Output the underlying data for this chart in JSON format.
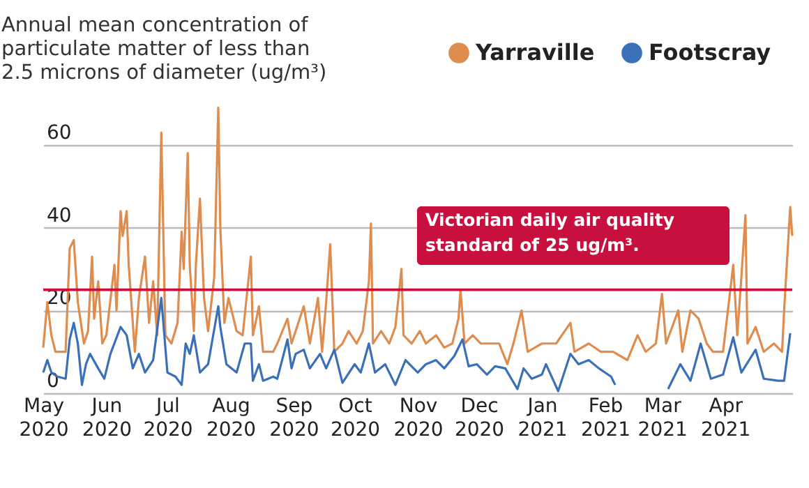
{
  "chart_data": {
    "type": "line",
    "title": "Annual mean concentration of particulate matter of less than 2.5 microns of diameter (ug/m³)",
    "legend": "top right",
    "grid": "y",
    "xlim": [
      "2020-05-01",
      "2021-05-04"
    ],
    "xticks": [
      {
        "value": "2020-05-01",
        "label": "May 2020"
      },
      {
        "value": "2020-06-01",
        "label": "Jun 2020"
      },
      {
        "value": "2020-07-01",
        "label": "Jul 2020"
      },
      {
        "value": "2020-08-01",
        "label": "Aug 2020"
      },
      {
        "value": "2020-09-01",
        "label": "Sep 2020"
      },
      {
        "value": "2020-10-01",
        "label": "Oct 2020"
      },
      {
        "value": "2020-11-01",
        "label": "Nov 2020"
      },
      {
        "value": "2020-12-01",
        "label": "Dec 2020"
      },
      {
        "value": "2021-01-01",
        "label": "Jan 2021"
      },
      {
        "value": "2021-02-01",
        "label": "Feb 2021"
      },
      {
        "value": "2021-03-01",
        "label": "Mar 2021"
      },
      {
        "value": "2021-04-01",
        "label": "Apr 2021"
      }
    ],
    "ylim": [
      0,
      95
    ],
    "yticks": [
      0,
      20,
      40,
      60
    ],
    "ref_lines": [
      {
        "axis": "y",
        "value": 25,
        "label": "Victorian daily air quality standard of 25 ug/m³.",
        "color": "#c8103e"
      }
    ],
    "series": [
      {
        "name": "Yarraville",
        "color": "#df8c4f",
        "x": [
          "2020-05-01",
          "2020-05-03",
          "2020-05-05",
          "2020-05-07",
          "2020-05-12",
          "2020-05-14",
          "2020-05-16",
          "2020-05-18",
          "2020-05-21",
          "2020-05-23",
          "2020-05-25",
          "2020-05-26",
          "2020-05-28",
          "2020-05-30",
          "2020-06-01",
          "2020-06-05",
          "2020-06-06",
          "2020-06-08",
          "2020-06-09",
          "2020-06-11",
          "2020-06-12",
          "2020-06-15",
          "2020-06-17",
          "2020-06-20",
          "2020-06-22",
          "2020-06-24",
          "2020-06-26",
          "2020-06-28",
          "2020-06-30",
          "2020-07-03",
          "2020-07-06",
          "2020-07-08",
          "2020-07-09",
          "2020-07-11",
          "2020-07-12",
          "2020-07-14",
          "2020-07-15",
          "2020-07-17",
          "2020-07-19",
          "2020-07-21",
          "2020-07-24",
          "2020-07-26",
          "2020-07-27",
          "2020-07-29",
          "2020-07-31",
          "2020-08-04",
          "2020-08-07",
          "2020-08-11",
          "2020-08-12",
          "2020-08-15",
          "2020-08-17",
          "2020-08-22",
          "2020-08-24",
          "2020-08-29",
          "2020-08-31",
          "2020-09-06",
          "2020-09-09",
          "2020-09-13",
          "2020-09-15",
          "2020-09-17",
          "2020-09-19",
          "2020-09-21",
          "2020-09-25",
          "2020-09-28",
          "2020-10-02",
          "2020-10-05",
          "2020-10-08",
          "2020-10-09",
          "2020-10-10",
          "2020-10-14",
          "2020-10-18",
          "2020-10-21",
          "2020-10-24",
          "2020-10-25",
          "2020-10-29",
          "2020-11-02",
          "2020-11-05",
          "2020-11-10",
          "2020-11-14",
          "2020-11-18",
          "2020-11-21",
          "2020-11-22",
          "2020-11-24",
          "2020-11-28",
          "2020-12-02",
          "2020-12-07",
          "2020-12-11",
          "2020-12-15",
          "2020-12-18",
          "2020-12-22",
          "2020-12-25",
          "2021-01-01",
          "2021-01-08",
          "2021-01-15",
          "2021-01-17",
          "2021-01-24",
          "2021-01-30",
          "2021-02-05",
          "2021-02-12",
          "2021-02-17",
          "2021-02-21",
          "2021-02-26",
          "2021-03-01",
          "2021-03-03",
          "2021-03-09",
          "2021-03-11",
          "2021-03-15",
          "2021-03-19",
          "2021-03-23",
          "2021-03-26",
          "2021-03-31",
          "2021-04-05",
          "2021-04-07",
          "2021-04-09",
          "2021-04-11",
          "2021-04-12",
          "2021-04-16",
          "2021-04-20",
          "2021-04-25",
          "2021-04-29",
          "2021-04-30",
          "2021-05-03",
          "2021-05-04"
        ],
        "values": [
          11,
          22,
          14,
          10,
          10,
          35,
          37,
          22,
          12,
          15,
          33,
          18,
          27,
          12,
          14,
          31,
          20,
          44,
          38,
          44,
          31,
          10,
          23,
          33,
          17,
          27,
          14,
          63,
          14,
          12,
          17,
          39,
          30,
          58,
          31,
          15,
          31,
          47,
          23,
          15,
          28,
          69,
          40,
          17,
          23,
          15,
          14,
          33,
          14,
          21,
          10,
          10,
          12,
          18,
          12,
          21,
          12,
          23,
          10,
          22,
          36,
          10,
          12,
          15,
          12,
          15,
          27,
          41,
          12,
          15,
          12,
          16,
          30,
          14,
          12,
          15,
          12,
          14,
          11,
          12,
          18,
          25,
          12,
          14,
          12,
          12,
          12,
          7,
          12,
          20,
          10,
          12,
          12,
          17,
          10,
          12,
          10,
          10,
          8,
          14,
          10,
          12,
          24,
          12,
          20,
          10,
          20,
          18,
          12,
          10,
          10,
          31,
          14,
          28,
          43,
          12,
          16,
          10,
          12,
          10,
          20,
          45,
          38
        ]
      },
      {
        "name": "Footscray",
        "color": "#3a70b8",
        "x": [
          "2020-05-01",
          "2020-05-03",
          "2020-05-05",
          "2020-05-08",
          "2020-05-12",
          "2020-05-14",
          "2020-05-16",
          "2020-05-18",
          "2020-05-20",
          "2020-05-22",
          "2020-05-24",
          "2020-05-28",
          "2020-05-31",
          "2020-06-03",
          "2020-06-08",
          "2020-06-11",
          "2020-06-14",
          "2020-06-17",
          "2020-06-20",
          "2020-06-24",
          "2020-06-28",
          "2020-07-01",
          "2020-07-05",
          "2020-07-08",
          "2020-07-10",
          "2020-07-12",
          "2020-07-14",
          "2020-07-17",
          "2020-07-21",
          "2020-07-26",
          "2020-07-27",
          "2020-07-30",
          "2020-08-04",
          "2020-08-08",
          "2020-08-11",
          "2020-08-12",
          "2020-08-15",
          "2020-08-17",
          "2020-08-22",
          "2020-08-24",
          "2020-08-29",
          "2020-08-31",
          "2020-09-02",
          "2020-09-06",
          "2020-09-09",
          "2020-09-14",
          "2020-09-17",
          "2020-09-21",
          "2020-09-25",
          "2020-10-01",
          "2020-10-04",
          "2020-10-08",
          "2020-10-11",
          "2020-10-16",
          "2020-10-21",
          "2020-10-26",
          "2020-11-01",
          "2020-11-05",
          "2020-11-10",
          "2020-11-14",
          "2020-11-19",
          "2020-11-23",
          "2020-11-26",
          "2020-11-30",
          "2020-12-05",
          "2020-12-09",
          "2020-12-14",
          "2020-12-20",
          "2020-12-23",
          "2020-12-27",
          "2021-01-01",
          "2021-01-03",
          "2021-01-09",
          "2021-01-15",
          "2021-01-19",
          "2021-01-24",
          "2021-01-29",
          "2021-02-04",
          "2021-02-06",
          "2021-02-20",
          "2021-03-04",
          "2021-03-10",
          "2021-03-15",
          "2021-03-20",
          "2021-03-25",
          "2021-03-31",
          "2021-04-05",
          "2021-04-09",
          "2021-04-16",
          "2021-04-20",
          "2021-04-27",
          "2021-04-30",
          "2021-05-03"
        ],
        "values": [
          5,
          8,
          5,
          4,
          3.5,
          13,
          17,
          12,
          2,
          7,
          9.5,
          6,
          3.5,
          9.5,
          16,
          14,
          6,
          9.5,
          5,
          8,
          23,
          5,
          4,
          2,
          12,
          9.5,
          14,
          5,
          7,
          21,
          16,
          7,
          5,
          12,
          12,
          3,
          7,
          3,
          4,
          3.5,
          13,
          6,
          9.5,
          10.5,
          6,
          9.5,
          6,
          10.5,
          2.5,
          7,
          5,
          12,
          5,
          7,
          2,
          8,
          5,
          7,
          8,
          6,
          9,
          13,
          6.5,
          7,
          4.5,
          6.5,
          6,
          1,
          6,
          3.5,
          4.5,
          7,
          0.5,
          9.5,
          7,
          8,
          6,
          4,
          2,
          null,
          1,
          7,
          3,
          12,
          3.5,
          4.5,
          13.5,
          5,
          10.5,
          3.5,
          3,
          3,
          14.5
        ]
      }
    ]
  }
}
